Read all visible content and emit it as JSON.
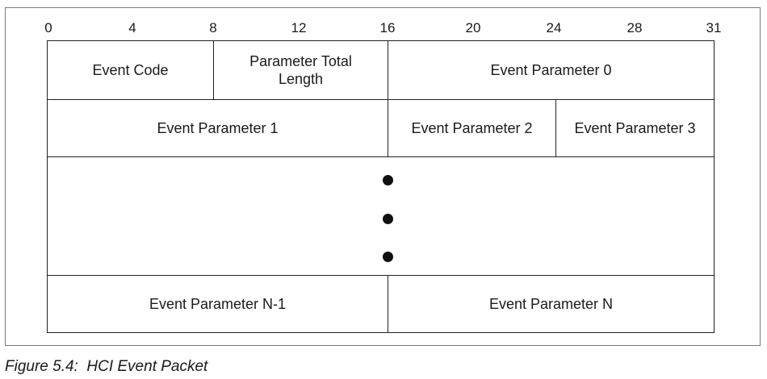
{
  "bit_positions": [
    "0",
    "4",
    "8",
    "12",
    "16",
    "20",
    "24",
    "28",
    "31"
  ],
  "rows": {
    "row0": {
      "event_code": "Event Code",
      "param_total_length_line1": "Parameter Total",
      "param_total_length_line2": "Length",
      "event_parameter_0": "Event Parameter 0"
    },
    "row1": {
      "event_parameter_1": "Event Parameter 1",
      "event_parameter_2": "Event Parameter 2",
      "event_parameter_3": "Event Parameter 3"
    },
    "row_last": {
      "event_parameter_n_minus_1": "Event Parameter N-1",
      "event_parameter_n": "Event Parameter N"
    }
  },
  "caption": "Figure 5.4:  HCI Event Packet"
}
